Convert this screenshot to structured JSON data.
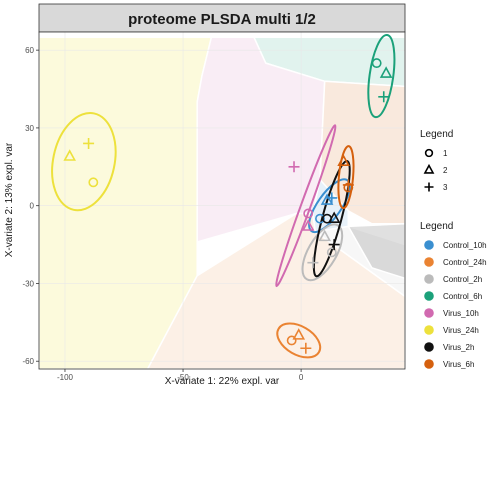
{
  "chart_data": {
    "type": "scatter",
    "title": "proteome PLSDA multi 1/2",
    "xlabel": "X-variate 1: 22% expl. var",
    "ylabel": "X-variate 2: 13% expl. var",
    "xlim": [
      -111,
      44
    ],
    "ylim": [
      -63,
      67
    ],
    "xticks": [
      -100,
      -50,
      0
    ],
    "yticks": [
      -60,
      -30,
      0,
      30,
      60
    ],
    "grid": true,
    "groups": [
      {
        "name": "Control_10h",
        "color": "#3a8fd0",
        "points": [
          {
            "x": 8,
            "y": -5,
            "shape": "1"
          },
          {
            "x": 11,
            "y": 2,
            "shape": "2"
          },
          {
            "x": 13,
            "y": 3,
            "shape": "3"
          }
        ],
        "ellipse": {
          "cx": 12,
          "cy": 0,
          "rx": 5,
          "ry": 12,
          "angle": 35
        }
      },
      {
        "name": "Control_24h",
        "color": "#ea8332",
        "points": [
          {
            "x": -4,
            "y": -52,
            "shape": "1"
          },
          {
            "x": -1,
            "y": -50,
            "shape": "2"
          },
          {
            "x": 2,
            "y": -55,
            "shape": "3"
          }
        ],
        "ellipse": {
          "cx": -1,
          "cy": -52,
          "rx": 6,
          "ry": 9,
          "angle": -60
        }
      },
      {
        "name": "Control_2h",
        "color": "#bbbbbb",
        "points": [
          {
            "x": 13,
            "y": -18,
            "shape": "1"
          },
          {
            "x": 10,
            "y": -12,
            "shape": "2"
          },
          {
            "x": 5,
            "y": -22,
            "shape": "3"
          }
        ],
        "ellipse": {
          "cx": 9,
          "cy": -18,
          "rx": 6,
          "ry": 12,
          "angle": 30
        }
      },
      {
        "name": "Control_6h",
        "color": "#1ba17a",
        "points": [
          {
            "x": 32,
            "y": 55,
            "shape": "1"
          },
          {
            "x": 36,
            "y": 51,
            "shape": "2"
          },
          {
            "x": 35,
            "y": 42,
            "shape": "3"
          }
        ],
        "ellipse": {
          "cx": 34,
          "cy": 50,
          "rx": 5,
          "ry": 16,
          "angle": 8
        }
      },
      {
        "name": "Virus_10h",
        "color": "#d16ab0",
        "points": [
          {
            "x": 3,
            "y": -3,
            "shape": "1"
          },
          {
            "x": 3,
            "y": -8,
            "shape": "2"
          },
          {
            "x": -3,
            "y": 15,
            "shape": "3"
          }
        ],
        "ellipse": {
          "cx": 2,
          "cy": 0,
          "rx": 2,
          "ry": 33,
          "angle": 20
        }
      },
      {
        "name": "Virus_24h",
        "color": "#ede13c",
        "points": [
          {
            "x": -88,
            "y": 9,
            "shape": "1"
          },
          {
            "x": -98,
            "y": 19,
            "shape": "2"
          },
          {
            "x": -90,
            "y": 24,
            "shape": "3"
          }
        ],
        "ellipse": {
          "cx": -92,
          "cy": 17,
          "rx": 13,
          "ry": 19,
          "angle": 12
        }
      },
      {
        "name": "Virus_2h",
        "color": "#111111",
        "points": [
          {
            "x": 11,
            "y": -5,
            "shape": "1"
          },
          {
            "x": 14,
            "y": -5,
            "shape": "2"
          },
          {
            "x": 14,
            "y": -15,
            "shape": "3"
          }
        ],
        "ellipse": {
          "cx": 13,
          "cy": -5,
          "rx": 4,
          "ry": 23,
          "angle": 15
        }
      },
      {
        "name": "Virus_6h",
        "color": "#d5600e",
        "points": [
          {
            "x": 20,
            "y": 7,
            "shape": "1"
          },
          {
            "x": 18,
            "y": 17,
            "shape": "2"
          },
          {
            "x": 20,
            "y": 8,
            "shape": "3"
          }
        ],
        "ellipse": {
          "cx": 19,
          "cy": 11,
          "rx": 3,
          "ry": 12,
          "angle": 5
        }
      }
    ],
    "shape_legend": {
      "title": "Legend",
      "entries": [
        "1",
        "2",
        "3"
      ]
    },
    "color_legend": {
      "title": "Legend"
    },
    "legend_position": "right"
  }
}
